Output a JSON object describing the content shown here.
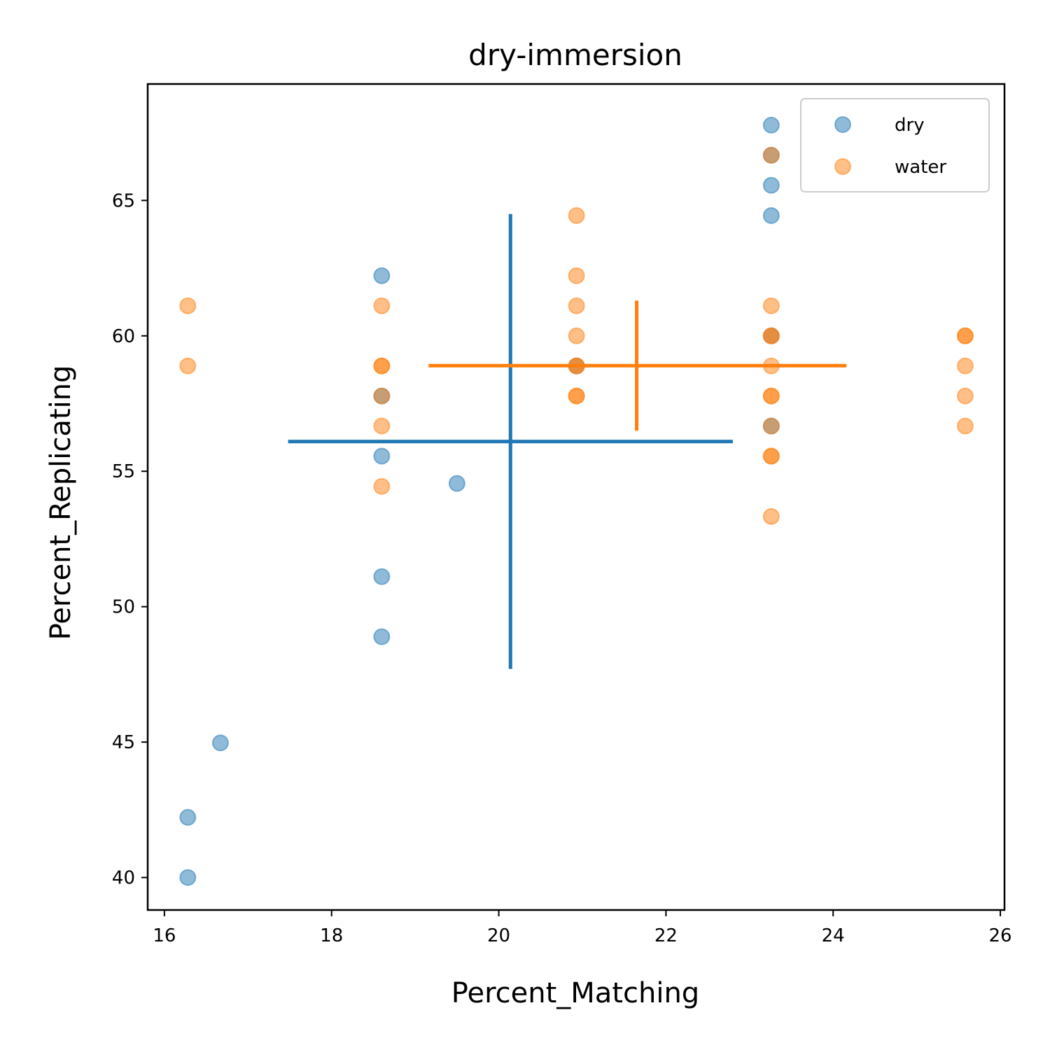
{
  "chart_data": {
    "type": "scatter",
    "title": "dry-immersion",
    "xlabel": "Percent_Matching",
    "ylabel": "Percent_Replicating",
    "xlim": [
      15.8,
      26.05
    ],
    "ylim": [
      38.8,
      69.3
    ],
    "xticks": [
      16,
      18,
      20,
      22,
      24,
      26
    ],
    "yticks": [
      40,
      45,
      50,
      55,
      60,
      65
    ],
    "grid": false,
    "legend_position": "top-right",
    "series": [
      {
        "name": "dry",
        "color": "#1f77b4",
        "points": [
          [
            16.28,
            40.0
          ],
          [
            16.28,
            42.22
          ],
          [
            16.67,
            44.97
          ],
          [
            18.6,
            62.22
          ],
          [
            18.6,
            57.78
          ],
          [
            18.6,
            55.56
          ],
          [
            18.6,
            51.11
          ],
          [
            18.6,
            48.89
          ],
          [
            19.5,
            54.55
          ],
          [
            20.93,
            58.89
          ],
          [
            23.26,
            67.78
          ],
          [
            23.26,
            66.67
          ],
          [
            23.26,
            65.56
          ],
          [
            23.26,
            64.44
          ],
          [
            23.26,
            60.0
          ],
          [
            23.26,
            56.67
          ]
        ],
        "mean_x": 20.14,
        "mean_y": 56.1,
        "xerr": [
          17.48,
          22.8
        ],
        "yerr": [
          47.7,
          64.5
        ]
      },
      {
        "name": "water",
        "color": "#ff7f0e",
        "points": [
          [
            16.28,
            61.11
          ],
          [
            16.28,
            58.89
          ],
          [
            18.6,
            61.11
          ],
          [
            18.6,
            58.89
          ],
          [
            18.6,
            58.89
          ],
          [
            18.6,
            57.78
          ],
          [
            18.6,
            56.67
          ],
          [
            18.6,
            54.44
          ],
          [
            20.93,
            64.44
          ],
          [
            20.93,
            62.22
          ],
          [
            20.93,
            61.11
          ],
          [
            20.93,
            60.0
          ],
          [
            20.93,
            58.89
          ],
          [
            20.93,
            58.89
          ],
          [
            20.93,
            57.78
          ],
          [
            20.93,
            57.78
          ],
          [
            23.26,
            66.67
          ],
          [
            23.26,
            61.11
          ],
          [
            23.26,
            60.0
          ],
          [
            23.26,
            60.0
          ],
          [
            23.26,
            58.89
          ],
          [
            23.26,
            57.78
          ],
          [
            23.26,
            57.78
          ],
          [
            23.26,
            56.67
          ],
          [
            23.26,
            55.56
          ],
          [
            23.26,
            55.56
          ],
          [
            23.26,
            53.33
          ],
          [
            25.58,
            60.0
          ],
          [
            25.58,
            60.0
          ],
          [
            25.58,
            58.89
          ],
          [
            25.58,
            57.78
          ],
          [
            25.58,
            56.67
          ]
        ],
        "mean_x": 21.65,
        "mean_y": 58.9,
        "xerr": [
          19.16,
          24.16
        ],
        "yerr": [
          56.5,
          61.3
        ]
      }
    ]
  }
}
